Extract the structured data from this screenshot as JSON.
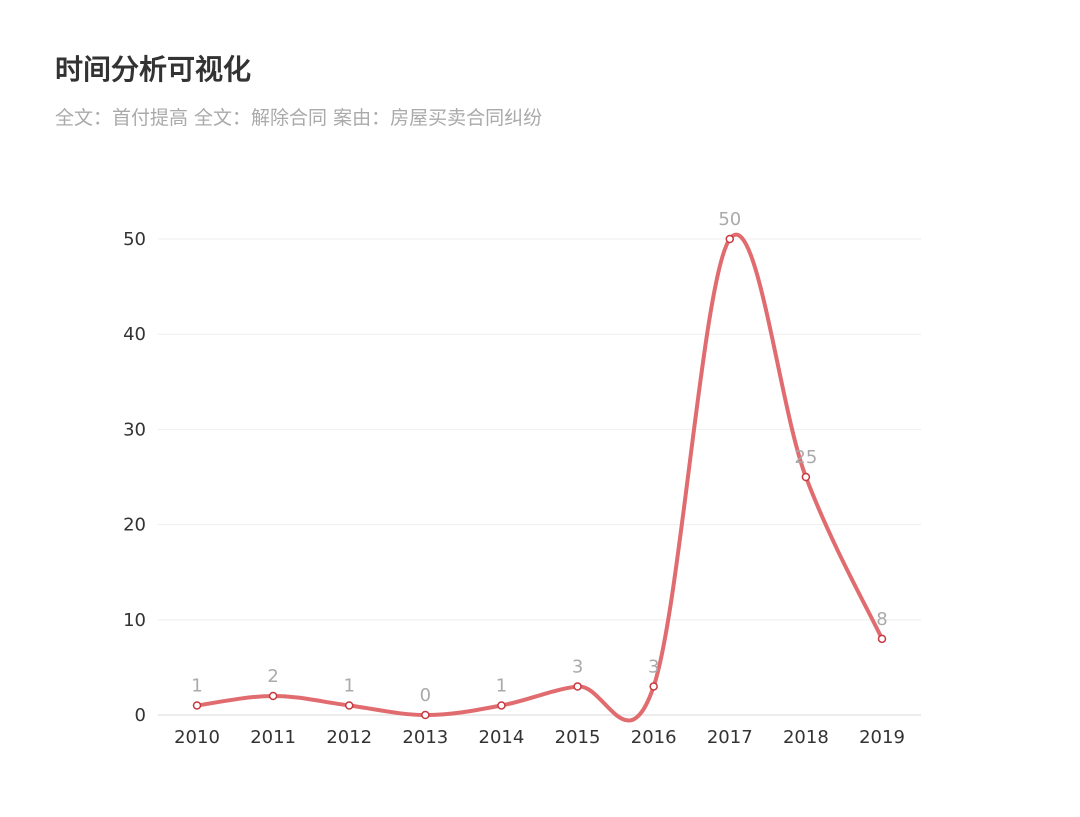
{
  "chart_data": {
    "type": "line",
    "title": "时间分析可视化",
    "subtitle": "全文：首付提高  全文：解除合同  案由：房屋买卖合同纠纷",
    "categories": [
      "2010",
      "2011",
      "2012",
      "2013",
      "2014",
      "2015",
      "2016",
      "2017",
      "2018",
      "2019"
    ],
    "series": [
      {
        "values": [
          1,
          2,
          1,
          0,
          1,
          3,
          3,
          50,
          25,
          8
        ],
        "color": "#e06c70",
        "smooth": true,
        "show_data_labels": true
      }
    ],
    "yticks": [
      "0",
      "10",
      "20",
      "30",
      "40",
      "50"
    ],
    "ylim": [
      0,
      50
    ],
    "grid": true,
    "legend": false
  }
}
